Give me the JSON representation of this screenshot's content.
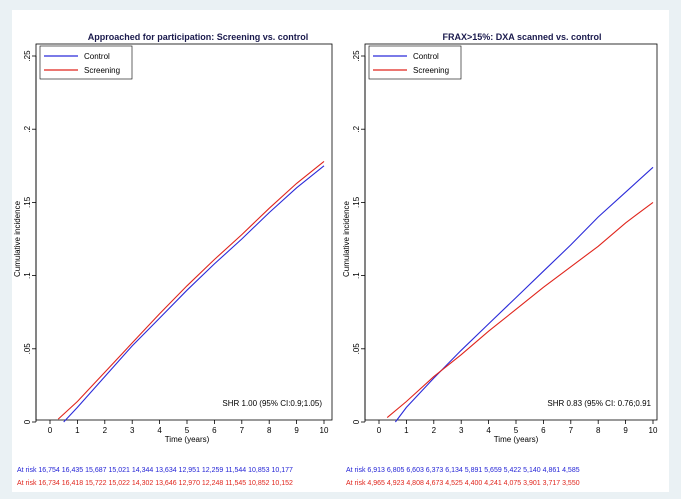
{
  "colors": {
    "control": "#2b2bd9",
    "screening": "#e0251c",
    "background": "#eaf1f4"
  },
  "chart_data": [
    {
      "type": "line",
      "title": "Approached for participation: Screening vs. control",
      "xlabel": "Time (years)",
      "ylabel": "Cumulative incidence",
      "xlim": [
        0,
        10
      ],
      "ylim": [
        0,
        0.25
      ],
      "xticks": [
        "0",
        "1",
        "2",
        "3",
        "4",
        "5",
        "6",
        "7",
        "8",
        "9",
        "10"
      ],
      "yticks": [
        "0",
        ".05",
        ".1",
        ".15",
        ".2",
        ".25"
      ],
      "legend_position": "top-left",
      "annotation": "SHR 1.00 (95% CI:0.9;1.05)",
      "series": [
        {
          "name": "Control",
          "color": "#2b2bd9",
          "x": [
            0.5,
            1,
            2,
            3,
            4,
            5,
            6,
            7,
            8,
            9,
            10
          ],
          "y": [
            0.0,
            0.01,
            0.031,
            0.052,
            0.071,
            0.09,
            0.108,
            0.125,
            0.143,
            0.16,
            0.175
          ]
        },
        {
          "name": "Screening",
          "color": "#e0251c",
          "x": [
            0.3,
            1,
            2,
            3,
            4,
            5,
            6,
            7,
            8,
            9,
            10
          ],
          "y": [
            0.002,
            0.014,
            0.034,
            0.054,
            0.074,
            0.093,
            0.111,
            0.128,
            0.146,
            0.163,
            0.178
          ]
        }
      ],
      "at_risk": {
        "label": "At risk",
        "control": [
          "16,754",
          "16,435",
          "15,687",
          "15,021",
          "14,344",
          "13,634",
          "12,951",
          "12,259",
          "11,544",
          "10,853",
          "10,177"
        ],
        "screening": [
          "16,734",
          "16,418",
          "15,722",
          "15,022",
          "14,302",
          "13,646",
          "12,970",
          "12,248",
          "11,545",
          "10,852",
          "10,152"
        ]
      }
    },
    {
      "type": "line",
      "title": "FRAX>15%: DXA scanned vs. control",
      "xlabel": "Time (years)",
      "ylabel": "Cumulative incidence",
      "xlim": [
        0,
        10
      ],
      "ylim": [
        0,
        0.25
      ],
      "xticks": [
        "0",
        "1",
        "2",
        "3",
        "4",
        "5",
        "6",
        "7",
        "8",
        "9",
        "10"
      ],
      "yticks": [
        "0",
        ".05",
        ".1",
        ".15",
        ".2",
        ".25"
      ],
      "legend_position": "top-left",
      "annotation": "SHR 0.83 (95% CI: 0.76;0.91",
      "series": [
        {
          "name": "Control",
          "color": "#2b2bd9",
          "x": [
            0.6,
            1,
            2,
            3,
            4,
            5,
            6,
            7,
            8,
            9,
            10
          ],
          "y": [
            0.0,
            0.01,
            0.03,
            0.049,
            0.067,
            0.085,
            0.103,
            0.121,
            0.14,
            0.157,
            0.174
          ]
        },
        {
          "name": "Screening",
          "color": "#e0251c",
          "x": [
            0.3,
            1,
            2,
            3,
            4,
            5,
            6,
            7,
            8,
            9,
            10
          ],
          "y": [
            0.003,
            0.014,
            0.031,
            0.046,
            0.062,
            0.077,
            0.092,
            0.106,
            0.12,
            0.136,
            0.15
          ]
        }
      ],
      "at_risk": {
        "label": "At risk",
        "control": [
          "6,913",
          "6,805",
          "6,603",
          "6,373",
          "6,134",
          "5,891",
          "5,659",
          "5,422",
          "5,140",
          "4,861",
          "4,585"
        ],
        "screening": [
          "4,965",
          "4,923",
          "4,808",
          "4,673",
          "4,525",
          "4,400",
          "4,241",
          "4,075",
          "3,901",
          "3,717",
          "3,550"
        ]
      }
    }
  ]
}
